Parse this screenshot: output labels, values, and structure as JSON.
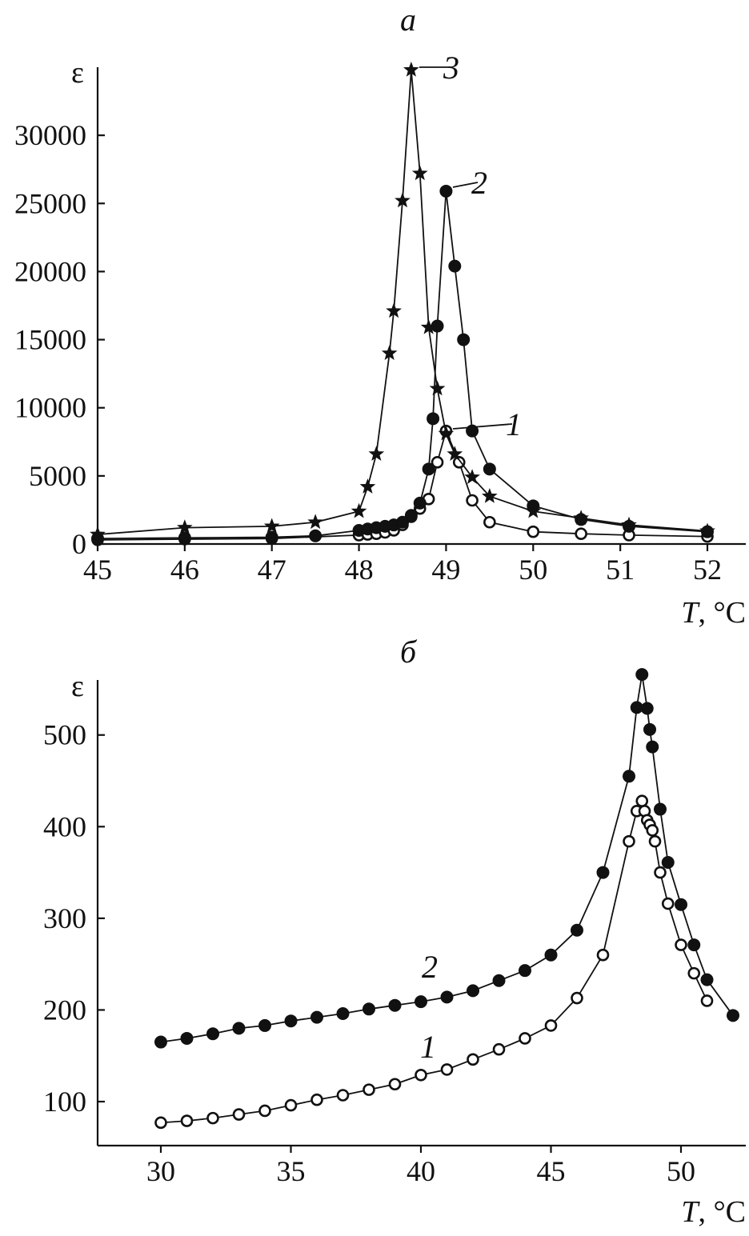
{
  "chart_data": [
    {
      "type": "line",
      "panel_label": "а",
      "ylabel": "ε",
      "xlabel_symbol": "T",
      "xlabel_unit": ", °C",
      "xlim": [
        45,
        52.7
      ],
      "ylim": [
        0,
        35000
      ],
      "xticks": [
        45,
        46,
        47,
        48,
        49,
        50,
        51,
        52
      ],
      "yticks": [
        0,
        5000,
        10000,
        15000,
        20000,
        25000,
        30000
      ],
      "grid": false,
      "series": [
        {
          "name": "1",
          "marker": "open-circle",
          "x": [
            45,
            46,
            47,
            48,
            48.1,
            48.2,
            48.3,
            48.4,
            48.5,
            48.6,
            48.7,
            48.8,
            48.9,
            49.0,
            49.15,
            49.3,
            49.5,
            50.0,
            50.55,
            51.1,
            52.0
          ],
          "y": [
            300,
            350,
            400,
            650,
            700,
            750,
            850,
            1000,
            1400,
            2000,
            2600,
            3300,
            6000,
            8300,
            6000,
            3200,
            1600,
            900,
            750,
            650,
            550
          ]
        },
        {
          "name": "2",
          "marker": "filled-circle",
          "x": [
            45,
            46,
            47,
            47.5,
            48.0,
            48.1,
            48.2,
            48.3,
            48.4,
            48.5,
            48.6,
            48.7,
            48.8,
            48.85,
            48.9,
            49.0,
            49.1,
            49.2,
            49.3,
            49.5,
            50.0,
            50.55,
            51.1,
            52.0
          ],
          "y": [
            400,
            450,
            500,
            600,
            1000,
            1100,
            1200,
            1300,
            1400,
            1600,
            2100,
            3000,
            5500,
            9200,
            16000,
            25900,
            20400,
            15000,
            8300,
            5500,
            2800,
            1800,
            1300,
            900
          ]
        },
        {
          "name": "3",
          "marker": "star",
          "x": [
            45,
            46,
            47,
            47.5,
            48.0,
            48.1,
            48.2,
            48.35,
            48.4,
            48.5,
            48.6,
            48.7,
            48.8,
            48.9,
            49.0,
            49.1,
            49.3,
            49.5,
            50.0,
            50.55,
            51.1,
            52.0
          ],
          "y": [
            700,
            1200,
            1300,
            1600,
            2400,
            4200,
            6600,
            14000,
            17100,
            25200,
            34800,
            27200,
            15900,
            11400,
            8100,
            6600,
            4900,
            3500,
            2400,
            1900,
            1400,
            950
          ]
        }
      ],
      "annotations": [
        {
          "text": "3",
          "x": 48.6,
          "y": 34800
        },
        {
          "text": "2",
          "x": 49.0,
          "y": 25900
        },
        {
          "text": "1",
          "x": 49.0,
          "y": 8300
        }
      ]
    },
    {
      "type": "line",
      "panel_label": "б",
      "ylabel": "ε",
      "xlabel_symbol": "T",
      "xlabel_unit": ", °C",
      "xlim": [
        27.5,
        52.5
      ],
      "ylim": [
        52,
        560
      ],
      "xticks": [
        30,
        35,
        40,
        45,
        50
      ],
      "yticks": [
        100,
        200,
        300,
        400,
        500
      ],
      "grid": false,
      "series": [
        {
          "name": "1",
          "marker": "open-circle",
          "x": [
            30,
            31,
            32,
            33,
            34,
            35,
            36,
            37,
            38,
            39,
            40,
            41,
            42,
            43,
            44,
            45,
            46,
            47,
            48.0,
            48.3,
            48.5,
            48.6,
            48.7,
            48.8,
            48.9,
            49.0,
            49.2,
            49.5,
            50.0,
            50.5,
            51.0
          ],
          "y": [
            77,
            79,
            82,
            86,
            90,
            96,
            102,
            107,
            113,
            119,
            129,
            135,
            146,
            157,
            169,
            183,
            213,
            260,
            384,
            417,
            428,
            417,
            407,
            402,
            396,
            384,
            350,
            316,
            271,
            240,
            210
          ]
        },
        {
          "name": "2",
          "marker": "filled-circle",
          "x": [
            30,
            31,
            32,
            33,
            34,
            35,
            36,
            37,
            38,
            39,
            40,
            41,
            42,
            43,
            44,
            45,
            46,
            47,
            48.0,
            48.3,
            48.5,
            48.7,
            48.8,
            48.9,
            49.2,
            49.5,
            50.0,
            50.5,
            51.0,
            52.0
          ],
          "y": [
            165,
            169,
            174,
            180,
            183,
            188,
            192,
            196,
            201,
            205,
            209,
            214,
            221,
            232,
            243,
            260,
            287,
            350,
            455,
            530,
            566,
            529,
            506,
            487,
            419,
            361,
            315,
            271,
            233,
            194
          ]
        }
      ],
      "annotations": [
        {
          "text": "2",
          "x": 40.3,
          "y": 246
        },
        {
          "text": "1",
          "x": 40.3,
          "y": 152
        }
      ]
    }
  ]
}
